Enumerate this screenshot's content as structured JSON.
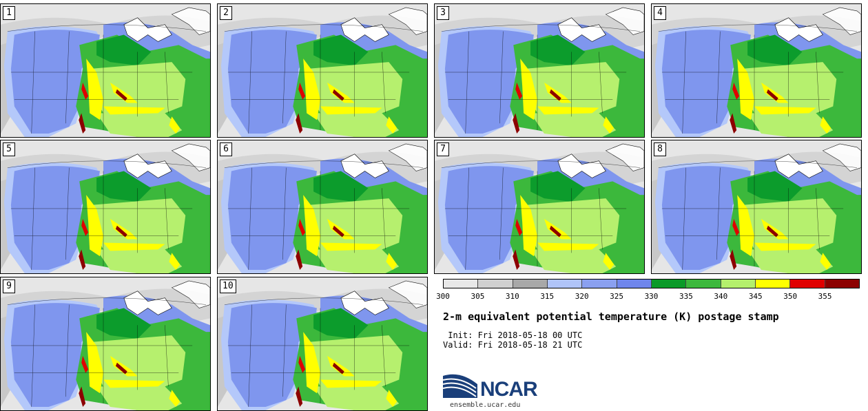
{
  "panels": [
    {
      "number": "1"
    },
    {
      "number": "2"
    },
    {
      "number": "3"
    },
    {
      "number": "4"
    },
    {
      "number": "5"
    },
    {
      "number": "6"
    },
    {
      "number": "7"
    },
    {
      "number": "8"
    },
    {
      "number": "9"
    },
    {
      "number": "10"
    }
  ],
  "colorbar": {
    "ticks": [
      "300",
      "305",
      "310",
      "315",
      "320",
      "325",
      "330",
      "335",
      "340",
      "345",
      "350",
      "355"
    ],
    "colors": [
      "#e8e8e8",
      "#d0d0d0",
      "#a8a8a8",
      "#b0c4f8",
      "#8aa0f0",
      "#6f86ec",
      "#0a9a28",
      "#3cb83c",
      "#b4f06c",
      "#ffff00",
      "#e00000",
      "#8c0000"
    ]
  },
  "title": "2-m equivalent potential temperature (K) postage stamp",
  "init_line": " Init: Fri 2018-05-18 00 UTC",
  "valid_line": "Valid: Fri 2018-05-18 21 UTC",
  "logo": {
    "text": "NCAR",
    "url": "ensemble.ucar.edu",
    "colors": {
      "dark": "#1a3f7a",
      "mid": "#2c7fc0"
    }
  },
  "map_colors": {
    "land_grey": "#c8c8c8",
    "light_grey": "#e6e6e6",
    "light_blue": "#b4c8fa",
    "blue": "#7f96ee",
    "dark_green": "#0c9c2c",
    "green": "#3cb83c",
    "light_green": "#b6f06e",
    "yellow": "#ffff00",
    "red": "#e00000",
    "dark_red": "#8c0000",
    "lake": "#ffffff"
  }
}
